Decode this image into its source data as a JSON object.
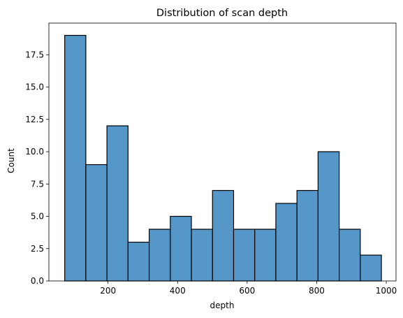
{
  "colors": {
    "bar_fill": "#5597c8",
    "bar_edge": "#000000",
    "axis": "#000000",
    "background": "#ffffff"
  },
  "chart_data": {
    "type": "bar",
    "title": "Distribution of scan depth",
    "xlabel": "depth",
    "ylabel": "Count",
    "grid": false,
    "xlim": [
      30,
      1028
    ],
    "ylim": [
      0,
      19.95
    ],
    "xticks": [
      200,
      400,
      600,
      800,
      1000
    ],
    "xtick_labels": [
      "200",
      "400",
      "600",
      "800",
      "1000"
    ],
    "yticks": [
      0,
      2.5,
      5,
      7.5,
      10,
      12.5,
      15,
      17.5
    ],
    "ytick_labels": [
      "0.0",
      "2.5",
      "5.0",
      "7.5",
      "10.0",
      "12.5",
      "15.0",
      "17.5"
    ],
    "bins": [
      {
        "x0": 75.5,
        "x1": 136.2,
        "count": 19
      },
      {
        "x0": 136.2,
        "x1": 196.9,
        "count": 9
      },
      {
        "x0": 196.9,
        "x1": 257.6,
        "count": 12
      },
      {
        "x0": 257.6,
        "x1": 318.3,
        "count": 3
      },
      {
        "x0": 318.3,
        "x1": 379.0,
        "count": 4
      },
      {
        "x0": 379.0,
        "x1": 439.7,
        "count": 5
      },
      {
        "x0": 439.7,
        "x1": 500.4,
        "count": 4
      },
      {
        "x0": 500.4,
        "x1": 561.1,
        "count": 7
      },
      {
        "x0": 561.1,
        "x1": 621.8,
        "count": 4
      },
      {
        "x0": 621.8,
        "x1": 682.5,
        "count": 4
      },
      {
        "x0": 682.5,
        "x1": 743.2,
        "count": 6
      },
      {
        "x0": 743.2,
        "x1": 803.9,
        "count": 7
      },
      {
        "x0": 803.9,
        "x1": 864.6,
        "count": 10
      },
      {
        "x0": 864.6,
        "x1": 925.3,
        "count": 4
      },
      {
        "x0": 925.3,
        "x1": 986.0,
        "count": 2
      }
    ]
  }
}
